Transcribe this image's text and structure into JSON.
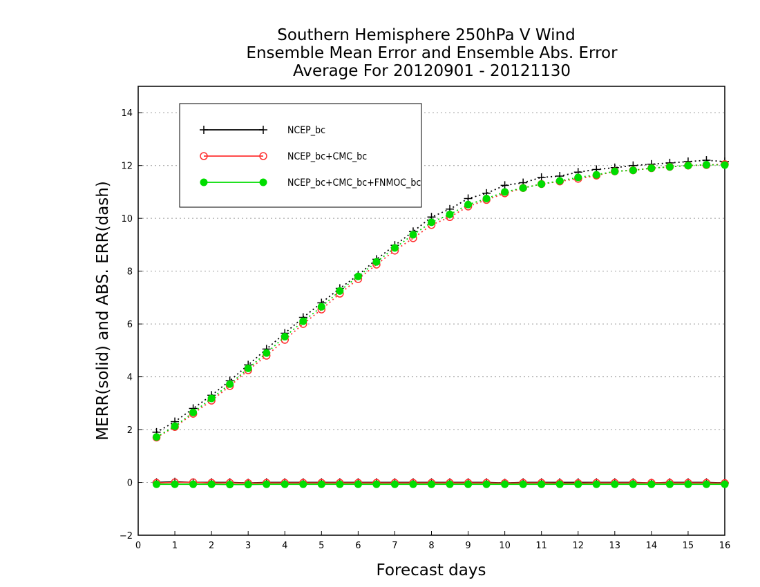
{
  "chart_data": {
    "type": "line",
    "title_lines": [
      "Southern Hemisphere 250hPa V Wind",
      "Ensemble Mean Error and Ensemble Abs. Error",
      "Average For 20120901 - 20121130"
    ],
    "xlabel": "Forecast days",
    "ylabel": "MERR(solid) and ABS. ERR(dash)",
    "xlim": [
      0,
      16
    ],
    "ylim": [
      -2,
      15
    ],
    "xticks": [
      "0",
      "1",
      "2",
      "3",
      "4",
      "5",
      "6",
      "7",
      "8",
      "9",
      "10",
      "11",
      "12",
      "13",
      "14",
      "15",
      "16"
    ],
    "yticks": [
      "−2",
      "0",
      "2",
      "4",
      "6",
      "8",
      "10",
      "12",
      "14"
    ],
    "ytick_values": [
      -2,
      0,
      2,
      4,
      6,
      8,
      10,
      12,
      14
    ],
    "grid": "horizontal-dotted",
    "legend_position": "top-left",
    "x": [
      0.5,
      1.0,
      1.5,
      2.0,
      2.5,
      3.0,
      3.5,
      4.0,
      4.5,
      5.0,
      5.5,
      6.0,
      6.5,
      7.0,
      7.5,
      8.0,
      8.5,
      9.0,
      9.5,
      10.0,
      10.5,
      11.0,
      11.5,
      12.0,
      12.5,
      13.0,
      13.5,
      14.0,
      14.5,
      15.0,
      15.5,
      16.0
    ],
    "series": [
      {
        "name": "NCEP_bc",
        "color": "#000000",
        "marker": "plus",
        "abs_err": [
          1.9,
          2.3,
          2.8,
          3.3,
          3.85,
          4.45,
          5.05,
          5.65,
          6.25,
          6.8,
          7.35,
          7.85,
          8.45,
          8.98,
          9.5,
          10.05,
          10.35,
          10.75,
          10.95,
          11.25,
          11.35,
          11.55,
          11.6,
          11.75,
          11.85,
          11.92,
          12.0,
          12.05,
          12.1,
          12.15,
          12.2,
          12.15
        ],
        "mean_err": [
          0.0,
          0.02,
          0.0,
          0.0,
          0.0,
          -0.02,
          0.0,
          0.0,
          0.0,
          0.0,
          0.0,
          0.0,
          0.0,
          0.0,
          0.0,
          0.0,
          0.0,
          0.0,
          0.0,
          -0.02,
          0.0,
          0.0,
          0.0,
          0.0,
          0.0,
          0.0,
          0.0,
          -0.02,
          0.0,
          0.0,
          0.0,
          -0.02
        ]
      },
      {
        "name": "NCEP_bc+CMC_bc",
        "color": "#ff3030",
        "marker": "open-circle",
        "abs_err": [
          1.7,
          2.1,
          2.6,
          3.1,
          3.65,
          4.25,
          4.8,
          5.4,
          6.0,
          6.55,
          7.15,
          7.7,
          8.25,
          8.78,
          9.25,
          9.75,
          10.05,
          10.45,
          10.7,
          10.95,
          11.15,
          11.3,
          11.4,
          11.5,
          11.62,
          11.78,
          11.82,
          11.9,
          11.95,
          12.0,
          12.02,
          12.05
        ],
        "mean_err": [
          -0.02,
          0.0,
          0.0,
          -0.02,
          -0.02,
          -0.03,
          -0.02,
          -0.02,
          -0.02,
          -0.02,
          -0.02,
          -0.02,
          -0.02,
          -0.02,
          -0.02,
          -0.02,
          -0.02,
          -0.02,
          -0.02,
          -0.03,
          -0.02,
          -0.02,
          -0.03,
          -0.03,
          -0.02,
          -0.02,
          -0.02,
          -0.02,
          -0.02,
          -0.02,
          -0.02,
          -0.03
        ]
      },
      {
        "name": "NCEP_bc+CMC_bc+FNMOC_bc",
        "color": "#00dd00",
        "marker": "filled-circle",
        "abs_err": [
          1.72,
          2.13,
          2.65,
          3.18,
          3.72,
          4.32,
          4.9,
          5.52,
          6.1,
          6.65,
          7.25,
          7.8,
          8.35,
          8.88,
          9.38,
          9.85,
          10.15,
          10.52,
          10.75,
          11.0,
          11.15,
          11.3,
          11.42,
          11.55,
          11.65,
          11.78,
          11.82,
          11.9,
          11.95,
          12.0,
          12.03,
          12.02
        ],
        "mean_err": [
          -0.07,
          -0.07,
          -0.07,
          -0.07,
          -0.08,
          -0.08,
          -0.07,
          -0.07,
          -0.07,
          -0.07,
          -0.07,
          -0.07,
          -0.07,
          -0.07,
          -0.07,
          -0.07,
          -0.07,
          -0.07,
          -0.07,
          -0.07,
          -0.07,
          -0.07,
          -0.07,
          -0.07,
          -0.07,
          -0.07,
          -0.07,
          -0.07,
          -0.07,
          -0.07,
          -0.07,
          -0.07
        ]
      }
    ]
  }
}
